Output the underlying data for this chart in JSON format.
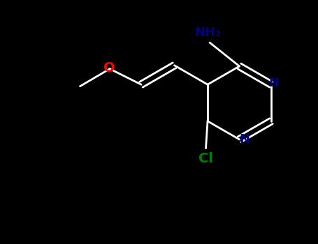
{
  "background_color": "#000000",
  "bond_color": "#ffffff",
  "atom_colors": {
    "N": "#00008b",
    "O": "#ff0000",
    "Cl": "#008000",
    "NH2": "#00008b",
    "C": "#ffffff"
  },
  "figsize": [
    4.55,
    3.5
  ],
  "dpi": 100,
  "lw": 2.0,
  "fontsize": 13
}
